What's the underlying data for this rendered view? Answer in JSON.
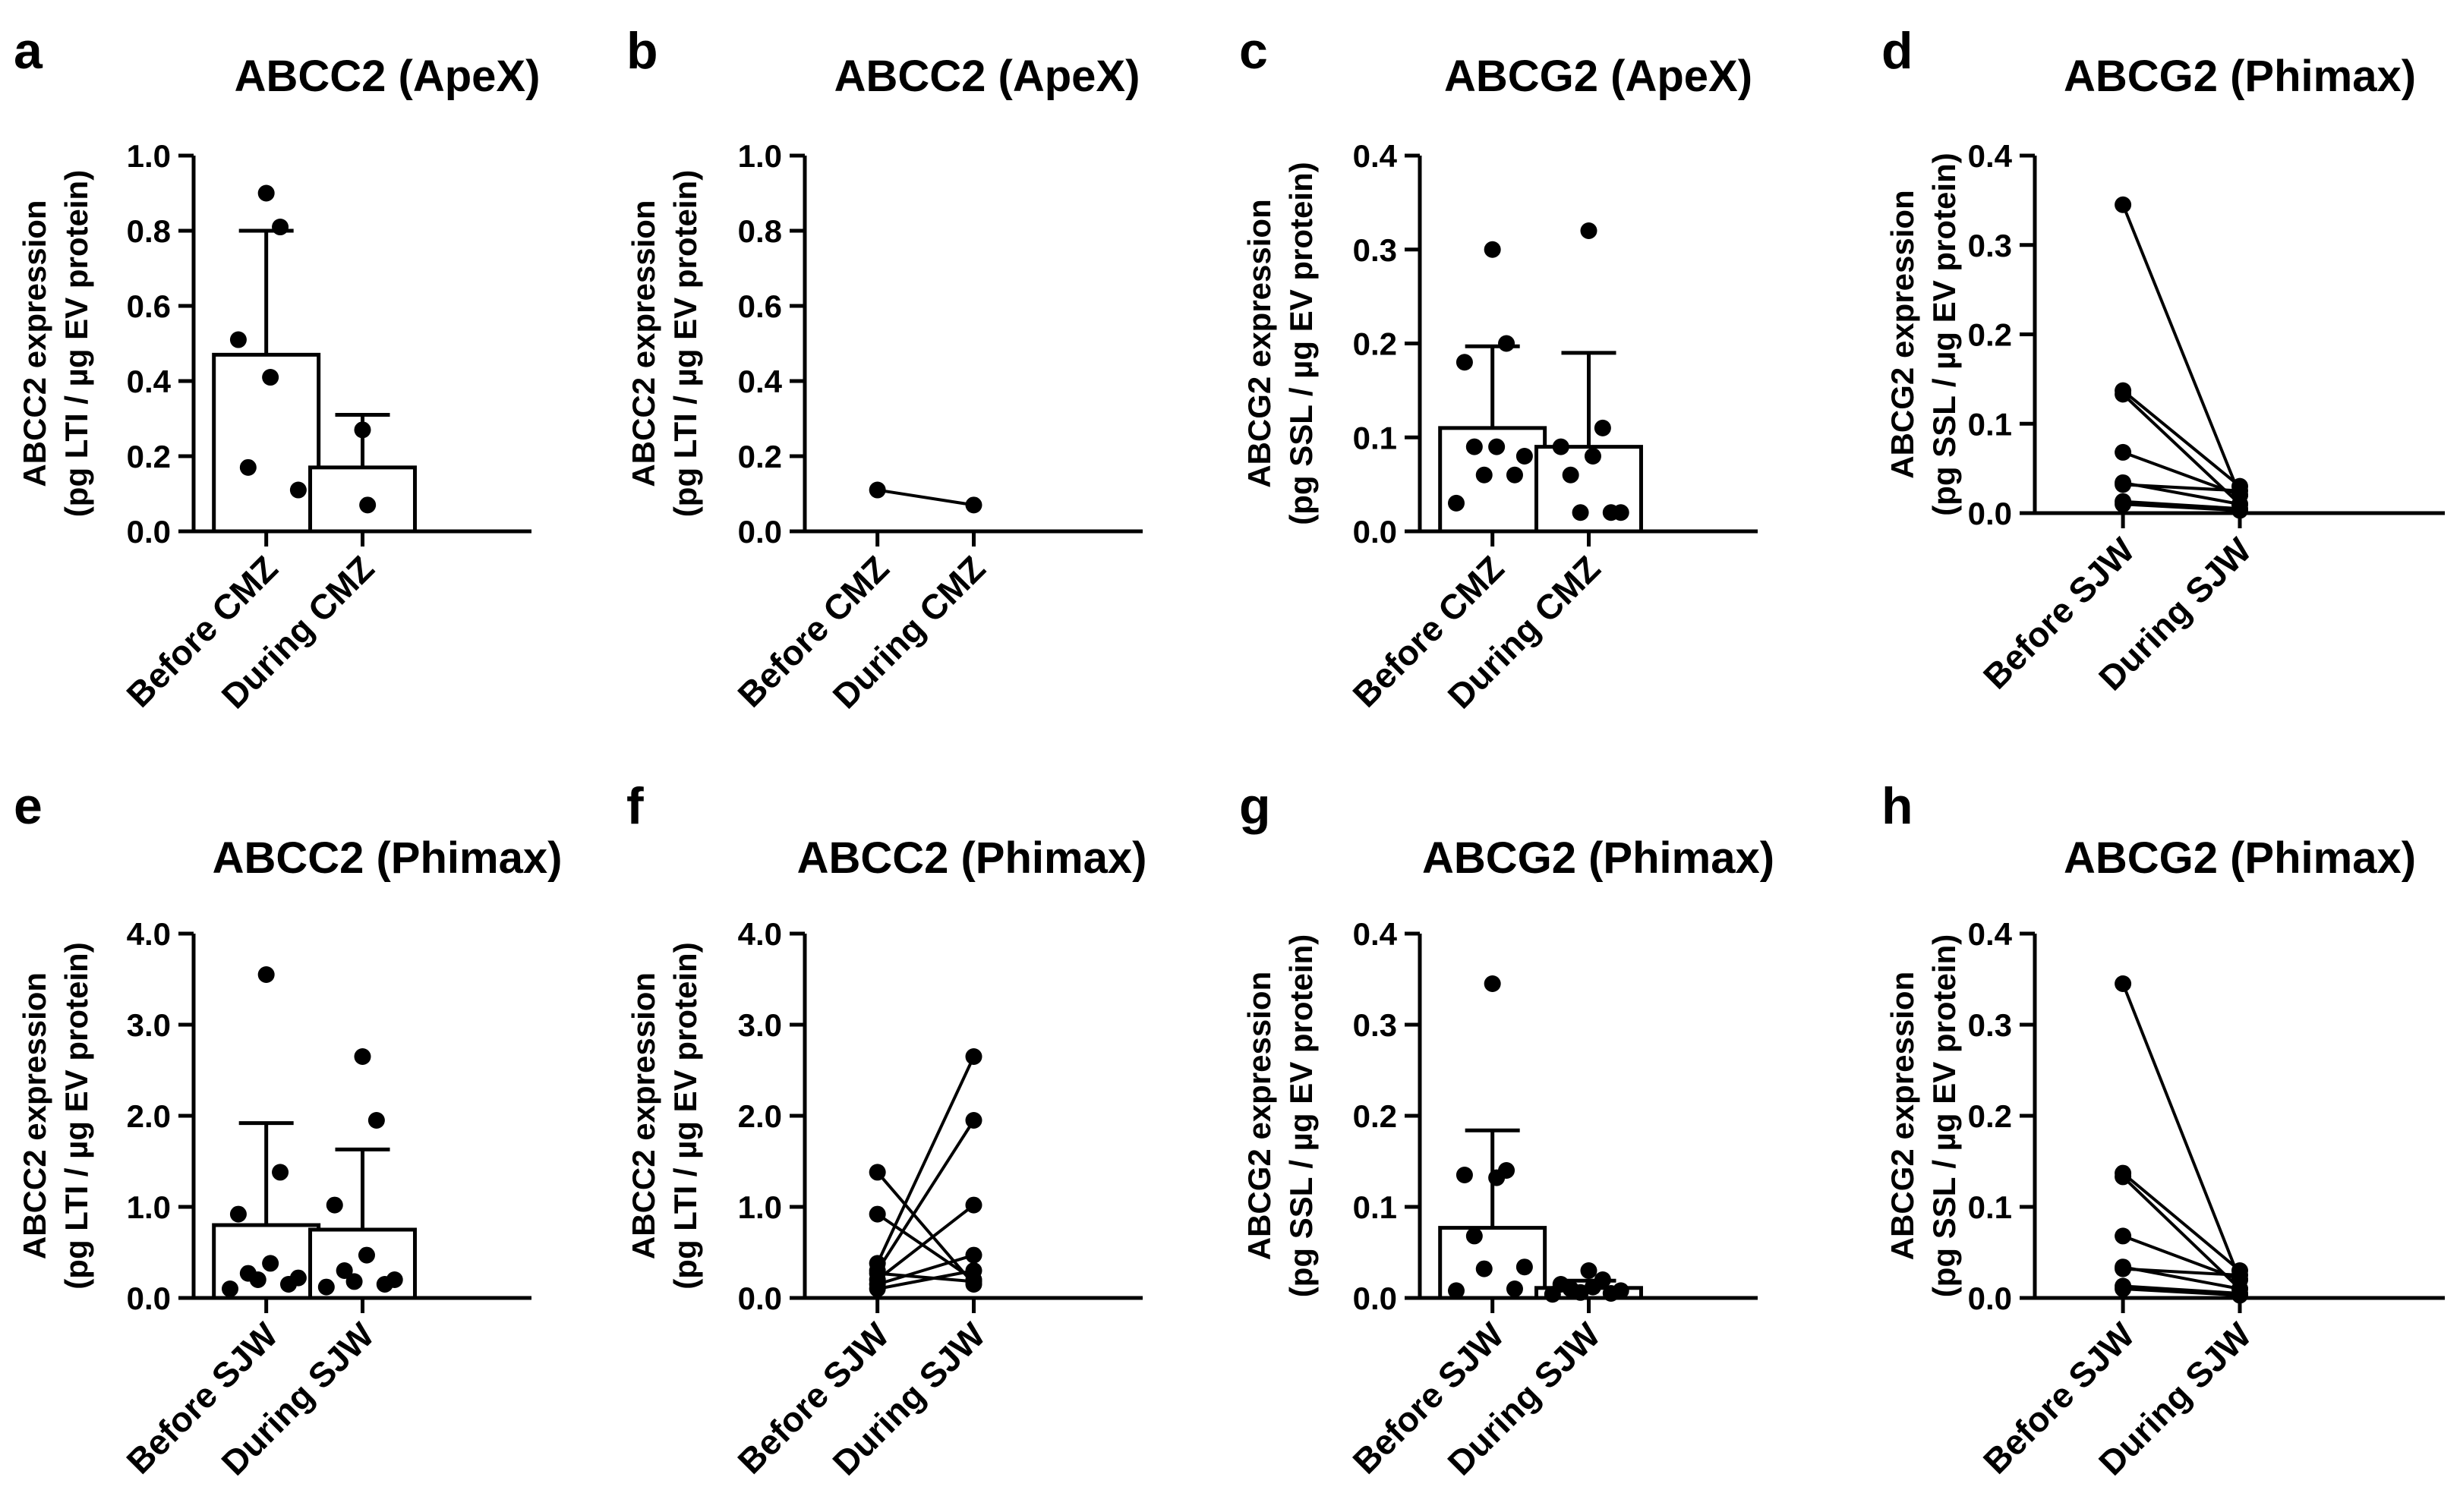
{
  "chart_data": [
    {
      "panel": "a",
      "type": "bar",
      "title": "ABCC2 (ApeX)",
      "ylabel": [
        "ABCC2 expression",
        "(pg LTI / µg EV protein)"
      ],
      "categories": [
        "Before CMZ",
        "During CMZ"
      ],
      "ylim": [
        0,
        1.0
      ],
      "yticks": [
        0.0,
        0.2,
        0.4,
        0.6,
        0.8,
        1.0
      ],
      "ytick_labels": [
        "0.0",
        "0.2",
        "0.4",
        "0.6",
        "0.8",
        "1.0"
      ],
      "means": [
        0.47,
        0.17
      ],
      "sd": [
        0.33,
        0.14
      ],
      "points": [
        [
          0.9,
          0.81,
          0.51,
          0.41,
          0.17,
          0.11
        ],
        [
          0.27,
          0.07
        ]
      ]
    },
    {
      "panel": "b",
      "type": "line",
      "title": "ABCC2 (ApeX)",
      "ylabel": [
        "ABCC2 expression",
        "(pg LTI / µg EV protein)"
      ],
      "categories": [
        "Before CMZ",
        "During CMZ"
      ],
      "ylim": [
        0,
        1.0
      ],
      "yticks": [
        0.0,
        0.2,
        0.4,
        0.6,
        0.8,
        1.0
      ],
      "ytick_labels": [
        "0.0",
        "0.2",
        "0.4",
        "0.6",
        "0.8",
        "1.0"
      ],
      "pairs": [
        [
          0.11,
          0.07
        ]
      ]
    },
    {
      "panel": "c",
      "type": "bar",
      "title": "ABCG2 (ApeX)",
      "ylabel": [
        "ABCG2 expression",
        "(pg SSL / µg EV protein)"
      ],
      "categories": [
        "Before CMZ",
        "During CMZ"
      ],
      "ylim": [
        0,
        0.4
      ],
      "yticks": [
        0.0,
        0.1,
        0.2,
        0.3,
        0.4
      ],
      "ytick_labels": [
        "0.0",
        "0.1",
        "0.2",
        "0.3",
        "0.4"
      ],
      "means": [
        0.11,
        0.09
      ],
      "sd": [
        0.087,
        0.1
      ],
      "points": [
        [
          0.3,
          0.2,
          0.18,
          0.09,
          0.09,
          0.08,
          0.06,
          0.06,
          0.03
        ],
        [
          0.32,
          0.11,
          0.09,
          0.08,
          0.06,
          0.02,
          0.02,
          0.02
        ]
      ]
    },
    {
      "panel": "d",
      "type": "line",
      "title": "ABCG2 (Phimax)",
      "ylabel": [
        "ABCG2 expression",
        "(pg SSL / µg EV protein)"
      ],
      "categories": [
        "Before SJW",
        "During SJW"
      ],
      "ylim": [
        0,
        0.4
      ],
      "yticks": [
        0.0,
        0.1,
        0.2,
        0.3,
        0.4
      ],
      "ytick_labels": [
        "0.0",
        "0.1",
        "0.2",
        "0.3",
        "0.4"
      ],
      "pairs": [
        [
          0.345,
          0.02
        ],
        [
          0.137,
          0.03
        ],
        [
          0.133,
          0.01
        ],
        [
          0.068,
          0.02
        ],
        [
          0.034,
          0.01
        ],
        [
          0.032,
          0.025
        ],
        [
          0.013,
          0.005
        ],
        [
          0.01,
          0.003
        ]
      ]
    },
    {
      "panel": "e",
      "type": "bar",
      "title": "ABCC2 (Phimax)",
      "ylabel": [
        "ABCC2 expression",
        "(pg LTI / µg EV protein)"
      ],
      "categories": [
        "Before SJW",
        "During SJW"
      ],
      "ylim": [
        0,
        4.0
      ],
      "yticks": [
        0.0,
        1.0,
        2.0,
        3.0,
        4.0
      ],
      "ytick_labels": [
        "0.0",
        "1.0",
        "2.0",
        "3.0",
        "4.0"
      ],
      "means": [
        0.8,
        0.75
      ],
      "sd": [
        1.12,
        0.88
      ],
      "points": [
        [
          3.55,
          1.38,
          0.92,
          0.38,
          0.27,
          0.22,
          0.2,
          0.15,
          0.1
        ],
        [
          2.65,
          1.95,
          1.02,
          0.47,
          0.3,
          0.2,
          0.18,
          0.15,
          0.12
        ]
      ]
    },
    {
      "panel": "f",
      "type": "line",
      "title": "ABCC2 (Phimax)",
      "ylabel": [
        "ABCC2 expression",
        "(pg LTI / µg EV protein)"
      ],
      "categories": [
        "Before SJW",
        "During SJW"
      ],
      "ylim": [
        0,
        4.0
      ],
      "yticks": [
        0.0,
        1.0,
        2.0,
        3.0,
        4.0
      ],
      "ytick_labels": [
        "0.0",
        "1.0",
        "2.0",
        "3.0",
        "4.0"
      ],
      "pairs": [
        [
          1.38,
          0.15
        ],
        [
          0.92,
          0.2
        ],
        [
          0.38,
          2.65
        ],
        [
          0.3,
          1.95
        ],
        [
          0.27,
          0.18
        ],
        [
          0.2,
          1.02
        ],
        [
          0.15,
          0.47
        ],
        [
          0.1,
          0.3
        ]
      ]
    },
    {
      "panel": "g",
      "type": "bar",
      "title": "ABCG2 (Phimax)",
      "ylabel": [
        "ABCG2 expression",
        "(pg SSL / µg EV protein)"
      ],
      "categories": [
        "Before SJW",
        "During SJW"
      ],
      "ylim": [
        0,
        0.4
      ],
      "yticks": [
        0.0,
        0.1,
        0.2,
        0.3,
        0.4
      ],
      "ytick_labels": [
        "0.0",
        "0.1",
        "0.2",
        "0.3",
        "0.4"
      ],
      "means": [
        0.077,
        0.011
      ],
      "sd": [
        0.107,
        0.008
      ],
      "points": [
        [
          0.345,
          0.14,
          0.135,
          0.132,
          0.068,
          0.034,
          0.032,
          0.01,
          0.008
        ],
        [
          0.03,
          0.02,
          0.015,
          0.012,
          0.01,
          0.008,
          0.006,
          0.005,
          0.004
        ]
      ]
    },
    {
      "panel": "h",
      "type": "line",
      "title": "ABCG2 (Phimax)",
      "ylabel": [
        "ABCG2 expression",
        "(pg SSL / µg EV protein)"
      ],
      "categories": [
        "Before SJW",
        "During SJW"
      ],
      "ylim": [
        0,
        0.4
      ],
      "yticks": [
        0.0,
        0.1,
        0.2,
        0.3,
        0.4
      ],
      "ytick_labels": [
        "0.0",
        "0.1",
        "0.2",
        "0.3",
        "0.4"
      ],
      "pairs": [
        [
          0.345,
          0.02
        ],
        [
          0.137,
          0.03
        ],
        [
          0.133,
          0.01
        ],
        [
          0.068,
          0.02
        ],
        [
          0.034,
          0.01
        ],
        [
          0.032,
          0.025
        ],
        [
          0.013,
          0.005
        ],
        [
          0.01,
          0.003
        ]
      ]
    }
  ]
}
